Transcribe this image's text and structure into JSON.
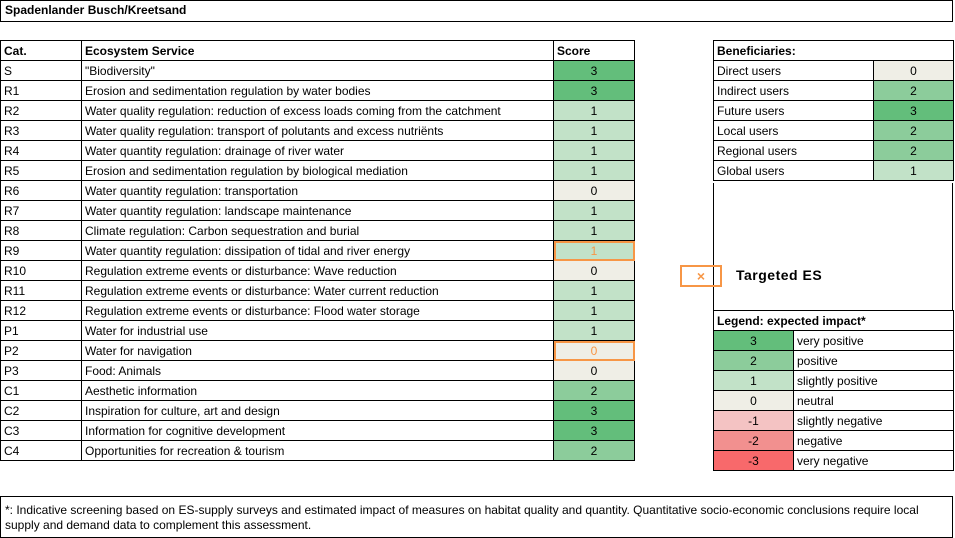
{
  "title": "Spadenlander Busch/Kreetsand",
  "main": {
    "headers": {
      "cat": "Cat.",
      "service": "Ecosystem Service",
      "score": "Score"
    },
    "rows": [
      {
        "cat": "S",
        "service": "\"Biodiversity\"",
        "score": "3",
        "targeted": false
      },
      {
        "cat": "R1",
        "service": "Erosion and sedimentation regulation by water bodies",
        "score": "3",
        "targeted": false
      },
      {
        "cat": "R2",
        "service": "Water quality regulation: reduction of excess loads coming from the catchment",
        "score": "1",
        "targeted": false
      },
      {
        "cat": "R3",
        "service": "Water quality regulation: transport of polutants and excess nutriënts",
        "score": "1",
        "targeted": false
      },
      {
        "cat": "R4",
        "service": "Water quantity regulation: drainage of river water",
        "score": "1",
        "targeted": false
      },
      {
        "cat": "R5",
        "service": "Erosion and sedimentation regulation by biological mediation",
        "score": "1",
        "targeted": false
      },
      {
        "cat": "R6",
        "service": "Water quantity regulation: transportation",
        "score": "0",
        "targeted": false
      },
      {
        "cat": "R7",
        "service": "Water quantity regulation: landscape maintenance",
        "score": "1",
        "targeted": false
      },
      {
        "cat": "R8",
        "service": "Climate regulation: Carbon sequestration and burial",
        "score": "1",
        "targeted": false
      },
      {
        "cat": "R9",
        "service": "Water quantity regulation: dissipation of tidal and river energy",
        "score": "1",
        "targeted": true
      },
      {
        "cat": "R10",
        "service": "Regulation extreme events or disturbance: Wave reduction",
        "score": "0",
        "targeted": false
      },
      {
        "cat": "R11",
        "service": "Regulation extreme events or disturbance: Water current reduction",
        "score": "1",
        "targeted": false
      },
      {
        "cat": "R12",
        "service": "Regulation extreme events or disturbance: Flood water storage",
        "score": "1",
        "targeted": false
      },
      {
        "cat": "P1",
        "service": "Water for industrial use",
        "score": "1",
        "targeted": false
      },
      {
        "cat": "P2",
        "service": "Water for navigation",
        "score": "0",
        "targeted": true
      },
      {
        "cat": "P3",
        "service": "Food: Animals",
        "score": "0",
        "targeted": false
      },
      {
        "cat": "C1",
        "service": "Aesthetic information",
        "score": "2",
        "targeted": false
      },
      {
        "cat": "C2",
        "service": "Inspiration for culture, art and design",
        "score": "3",
        "targeted": false
      },
      {
        "cat": "C3",
        "service": "Information for cognitive development",
        "score": "3",
        "targeted": false
      },
      {
        "cat": "C4",
        "service": "Opportunities for recreation & tourism",
        "score": "2",
        "targeted": false
      }
    ]
  },
  "beneficiaries": {
    "header": "Beneficiaries:",
    "rows": [
      {
        "label": "Direct users",
        "score": "0"
      },
      {
        "label": "Indirect users",
        "score": "2"
      },
      {
        "label": "Future users",
        "score": "3"
      },
      {
        "label": "Local users",
        "score": "2"
      },
      {
        "label": "Regional users",
        "score": "2"
      },
      {
        "label": "Global users",
        "score": "1"
      }
    ]
  },
  "targeted_key": {
    "symbol": "×",
    "label": "Targeted ES"
  },
  "legend": {
    "header": "Legend: expected  impact*",
    "rows": [
      {
        "score": "3",
        "label": "very positive"
      },
      {
        "score": "2",
        "label": "positive"
      },
      {
        "score": "1",
        "label": "slightly positive"
      },
      {
        "score": "0",
        "label": "neutral"
      },
      {
        "score": "-1",
        "label": "slightly negative"
      },
      {
        "score": "-2",
        "label": "negative"
      },
      {
        "score": "-3",
        "label": "very negative"
      }
    ]
  },
  "colors": {
    "3": "#63be7b",
    "2": "#8ccc9b",
    "1": "#c2e2c8",
    "0": "#efeee6",
    "-1": "#f4c3c3",
    "-2": "#f2908f",
    "-3": "#f8696b",
    "target_outline": "#f79646"
  },
  "footnote": "*: Indicative screening based on ES-supply surveys and estimated impact of measures on habitat quality and quantity. Quantitative socio-economic conclusions require local supply and demand data to complement this assessment."
}
